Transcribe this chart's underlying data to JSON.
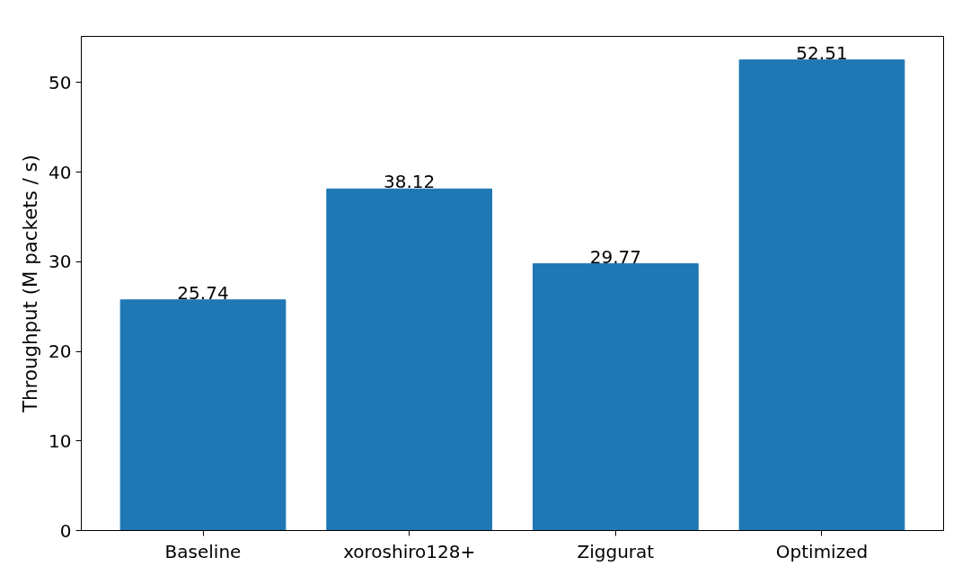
{
  "chart_data": {
    "type": "bar",
    "ylabel": "Throughput (M packets / s)",
    "categories": [
      "Baseline",
      "xoroshiro128+",
      "Ziggurat",
      "Optimized"
    ],
    "values": [
      25.74,
      38.12,
      29.77,
      52.51
    ],
    "color": "#1f77b4",
    "data_labels": true,
    "ylim": [
      0,
      55.14
    ],
    "yticks": [
      0,
      10,
      20,
      30,
      40,
      50
    ],
    "grid": false
  }
}
